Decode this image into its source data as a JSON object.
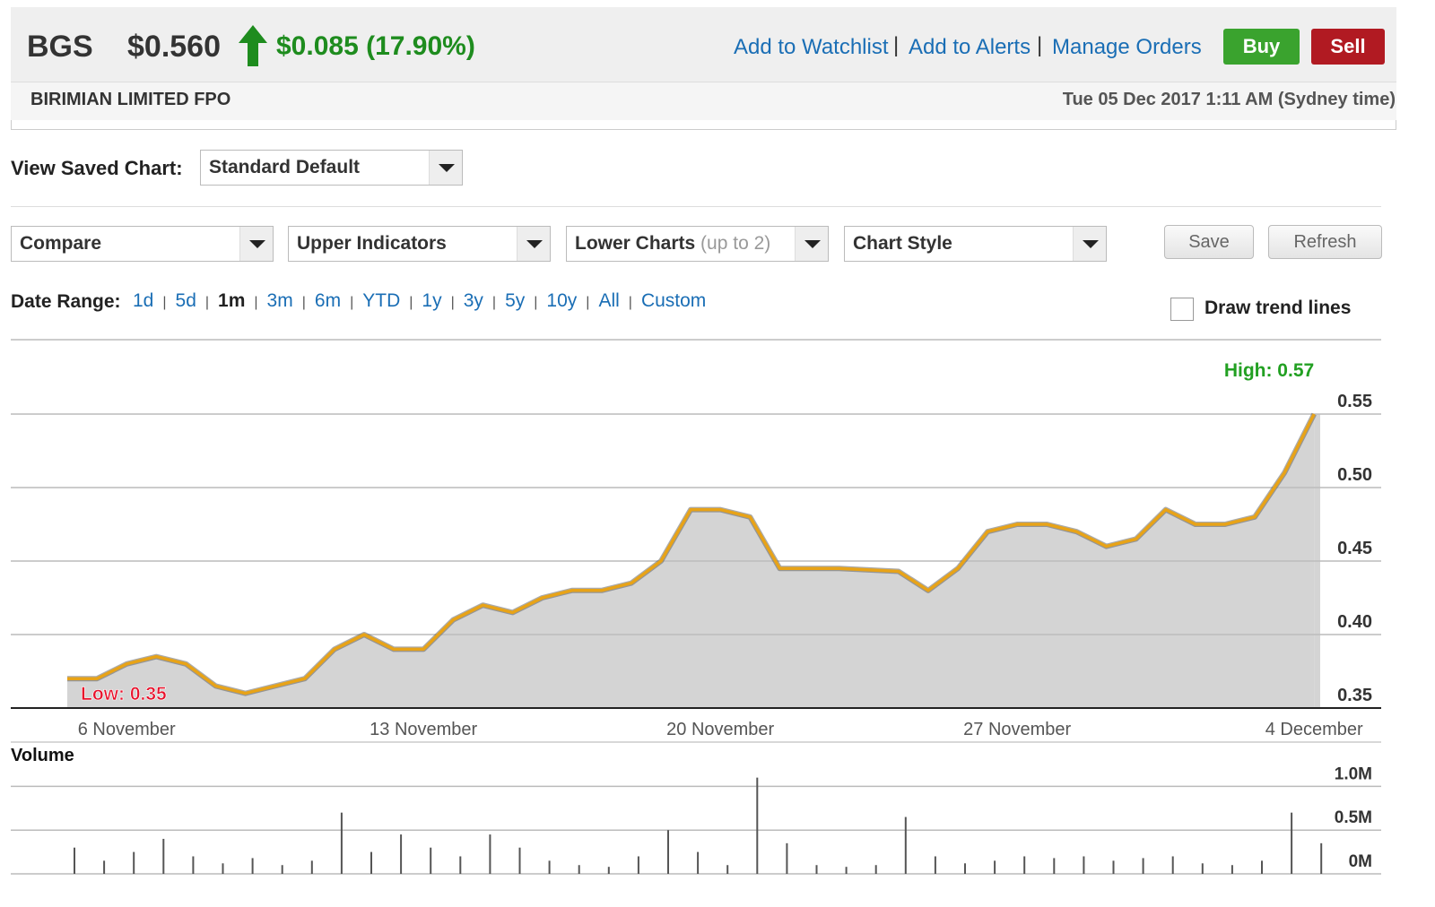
{
  "header": {
    "ticker": "BGS",
    "price": "$0.560",
    "change": "$0.085 (17.90%)",
    "name": "BIRIMIAN LIMITED FPO",
    "timestamp": "Tue 05 Dec 2017 1:11 AM (Sydney time)",
    "links": [
      "Add to Watchlist",
      "Add to Alerts",
      "Manage Orders"
    ],
    "buttons": [
      "Buy",
      "Sell"
    ]
  },
  "controls": {
    "saved_label": "View Saved Chart:",
    "saved_value": "Standard Default",
    "dropdowns": [
      "Compare",
      "Upper Indicators",
      "Lower Charts",
      "Chart Style"
    ],
    "lower_hint": "(up to 2)",
    "buttons": [
      "Save",
      "Refresh"
    ],
    "date_range_label": "Date Range:",
    "ranges": [
      "1d",
      "5d",
      "1m",
      "3m",
      "6m",
      "YTD",
      "1y",
      "3y",
      "5y",
      "10y",
      "All",
      "Custom"
    ],
    "selected_range": "1m",
    "trend_lines": "Draw trend lines"
  },
  "chart_data": [
    {
      "type": "area",
      "color": "#e8a317",
      "fill": "#d4d4d4",
      "grid": true,
      "categories": [
        null,
        null,
        "6 November",
        null,
        null,
        null,
        null,
        null,
        null,
        null,
        null,
        null,
        "13 November",
        null,
        null,
        null,
        null,
        null,
        null,
        null,
        null,
        null,
        "20 November",
        null,
        null,
        null,
        null,
        null,
        null,
        null,
        null,
        null,
        "27 November",
        null,
        null,
        null,
        null,
        null,
        null,
        null,
        null,
        null,
        "4 December"
      ],
      "values": [
        0.37,
        0.37,
        0.38,
        0.385,
        0.38,
        0.365,
        0.36,
        0.365,
        0.37,
        0.39,
        0.4,
        0.39,
        0.39,
        0.41,
        0.42,
        0.415,
        0.425,
        0.43,
        0.43,
        0.435,
        0.45,
        0.485,
        0.485,
        0.48,
        0.445,
        0.445,
        0.445,
        0.444,
        0.443,
        0.43,
        0.445,
        0.47,
        0.475,
        0.475,
        0.47,
        0.46,
        0.465,
        0.485,
        0.475,
        0.475,
        0.48,
        0.51,
        0.55
      ],
      "ylim": [
        0.35,
        0.6
      ],
      "yticks": [
        0.35,
        {
          "value": 0.4,
          "label": "0.40"
        },
        0.45,
        {
          "value": 0.5,
          "label": "0.50"
        },
        0.55
      ],
      "high_label": "High: 0.57",
      "low_label": "Low: 0.35"
    },
    {
      "type": "bar",
      "title": "Volume",
      "color": "#555555",
      "grid": true,
      "values": [
        0.3,
        0.15,
        0.25,
        0.4,
        0.2,
        0.12,
        0.18,
        0.1,
        0.15,
        0.7,
        0.25,
        0.45,
        0.3,
        0.2,
        0.45,
        0.3,
        0.15,
        0.1,
        0.08,
        0.2,
        0.5,
        0.25,
        0.1,
        1.1,
        0.35,
        0.1,
        0.08,
        0.1,
        0.65,
        0.2,
        0.12,
        0.15,
        0.2,
        0.18,
        0.2,
        0.15,
        0.18,
        0.2,
        0.12,
        0.1,
        0.15,
        0.7,
        0.35
      ],
      "ylim": [
        0,
        1.25
      ],
      "yticks": [
        {
          "value": 0,
          "label": "0M"
        },
        {
          "value": 0.5,
          "label": "0.5M"
        },
        {
          "value": 1,
          "label": "1.0M"
        }
      ]
    }
  ]
}
